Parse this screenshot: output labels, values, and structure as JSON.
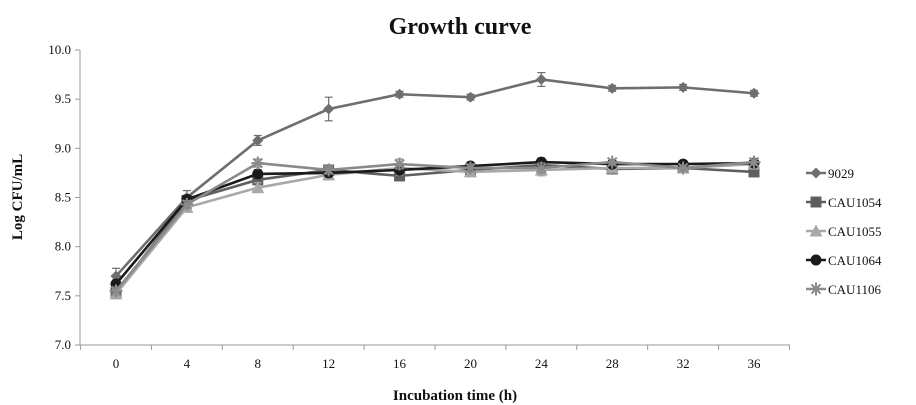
{
  "chart_data": {
    "type": "line",
    "title": "Growth curve",
    "xlabel": "Incubation time (h)",
    "ylabel": "Log CFU/mL",
    "x": [
      0,
      4,
      8,
      12,
      16,
      20,
      24,
      28,
      32,
      36
    ],
    "x_ticks": [
      "0",
      "4",
      "8",
      "12",
      "16",
      "20",
      "24",
      "28",
      "32",
      "36"
    ],
    "ylim": [
      7.0,
      10.0
    ],
    "y_ticks": [
      "7.0",
      "7.5",
      "8.0",
      "8.5",
      "9.0",
      "9.5",
      "10.0"
    ],
    "grid": false,
    "legend_position": "right",
    "series": [
      {
        "name": "9029",
        "marker": "diamond",
        "color": "#6e6e6e",
        "values": [
          7.7,
          8.5,
          9.08,
          9.4,
          9.55,
          9.52,
          9.7,
          9.61,
          9.62,
          9.56
        ],
        "errors": [
          0.08,
          0.07,
          0.05,
          0.12,
          0.03,
          0.03,
          0.07,
          0.03,
          0.03,
          0.03
        ]
      },
      {
        "name": "CAU1054",
        "marker": "square",
        "color": "#5f5f5f",
        "values": [
          7.53,
          8.47,
          8.68,
          8.78,
          8.72,
          8.78,
          8.83,
          8.79,
          8.8,
          8.76
        ],
        "errors": [
          0.04,
          0.05,
          0.04,
          0.04,
          0.05,
          0.04,
          0.04,
          0.03,
          0.03,
          0.03
        ]
      },
      {
        "name": "CAU1055",
        "marker": "triangle",
        "color": "#a8a8a8",
        "values": [
          7.52,
          8.4,
          8.6,
          8.73,
          8.8,
          8.76,
          8.78,
          8.8,
          8.8,
          8.84
        ],
        "errors": [
          0.04,
          0.04,
          0.05,
          0.05,
          0.07,
          0.04,
          0.06,
          0.03,
          0.03,
          0.04
        ]
      },
      {
        "name": "CAU1064",
        "marker": "circle",
        "color": "#1a1a1a",
        "values": [
          7.62,
          8.48,
          8.74,
          8.75,
          8.78,
          8.82,
          8.86,
          8.84,
          8.84,
          8.85
        ],
        "errors": [
          0.04,
          0.04,
          0.04,
          0.04,
          0.04,
          0.03,
          0.04,
          0.03,
          0.03,
          0.03
        ]
      },
      {
        "name": "CAU1106",
        "marker": "star",
        "color": "#8a8a8a",
        "values": [
          7.55,
          8.43,
          8.85,
          8.78,
          8.84,
          8.8,
          8.8,
          8.86,
          8.8,
          8.86
        ],
        "errors": [
          0.04,
          0.04,
          0.04,
          0.04,
          0.05,
          0.04,
          0.05,
          0.03,
          0.03,
          0.03
        ]
      }
    ]
  }
}
